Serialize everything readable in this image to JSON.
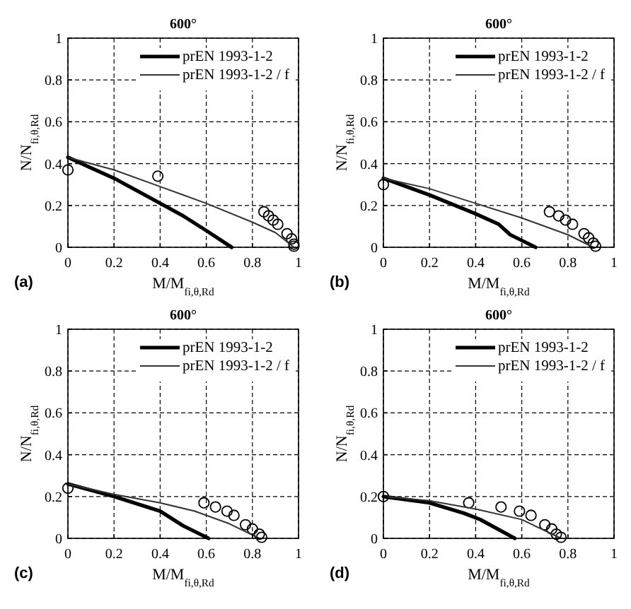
{
  "chart_data": [
    {
      "type": "scatter",
      "title": "600°",
      "xlabel": "M/M$_{fi,θ,Rd}$",
      "ylabel": "N/N$_{fi,θ,Rd}$",
      "annotations": [
        "(a)"
      ],
      "xlim": [
        0,
        1
      ],
      "ylim": [
        0,
        1
      ],
      "xticks": [
        0,
        0.2,
        0.4,
        0.6,
        0.8,
        1
      ],
      "yticks": [
        0,
        0.2,
        0.4,
        0.6,
        0.8,
        1
      ],
      "grid": true,
      "legend": "top right",
      "series": [
        {
          "marker": "circle",
          "color": "#000000",
          "x": [
            0,
            0.39,
            0.85,
            0.87,
            0.89,
            0.91,
            0.95,
            0.97,
            0.98,
            0.98
          ],
          "values": [
            0.37,
            0.34,
            0.17,
            0.15,
            0.13,
            0.11,
            0.065,
            0.04,
            0.015,
            0.005
          ]
        },
        {
          "type": "line",
          "name": "prEN 1993-1-2",
          "color": "#000000",
          "line_style": "solid",
          "x": [
            0,
            0.1,
            0.2,
            0.3,
            0.4,
            0.5,
            0.6,
            0.71
          ],
          "values": [
            0.43,
            0.38,
            0.33,
            0.27,
            0.21,
            0.15,
            0.08,
            0
          ]
        },
        {
          "type": "line",
          "name": "prEN 1993-1-2 / f",
          "color": "#333333",
          "line_style": "solid",
          "x": [
            0,
            0.2,
            0.4,
            0.6,
            0.8,
            0.9,
            0.98
          ],
          "values": [
            0.43,
            0.37,
            0.29,
            0.21,
            0.12,
            0.07,
            0
          ]
        }
      ]
    },
    {
      "type": "scatter",
      "title": "600°",
      "xlabel": "M/M$_{fi,θ,Rd}$",
      "ylabel": "N/N$_{fi,θ,Rd}$",
      "annotations": [
        "(b)"
      ],
      "xlim": [
        0,
        1
      ],
      "ylim": [
        0,
        1
      ],
      "xticks": [
        0,
        0.2,
        0.4,
        0.6,
        0.8,
        1
      ],
      "yticks": [
        0,
        0.2,
        0.4,
        0.6,
        0.8,
        1
      ],
      "grid": true,
      "legend": "top right",
      "series": [
        {
          "marker": "circle",
          "color": "#000000",
          "x": [
            0,
            0.72,
            0.76,
            0.79,
            0.82,
            0.87,
            0.89,
            0.91,
            0.92
          ],
          "values": [
            0.3,
            0.17,
            0.15,
            0.13,
            0.11,
            0.065,
            0.045,
            0.02,
            0.005
          ]
        },
        {
          "type": "line",
          "name": "prEN 1993-1-2",
          "color": "#000000",
          "line_style": "solid",
          "x": [
            0,
            0.2,
            0.4,
            0.5,
            0.55,
            0.66
          ],
          "values": [
            0.33,
            0.25,
            0.16,
            0.11,
            0.06,
            0
          ]
        },
        {
          "type": "line",
          "name": "prEN 1993-1-2 / f",
          "color": "#333333",
          "line_style": "solid",
          "x": [
            0,
            0.2,
            0.4,
            0.6,
            0.8,
            0.91
          ],
          "values": [
            0.33,
            0.28,
            0.21,
            0.14,
            0.06,
            0
          ]
        }
      ]
    },
    {
      "type": "scatter",
      "title": "600°",
      "xlabel": "M/M$_{fi,θ,Rd}$",
      "ylabel": "N/N$_{fi,θ,Rd}$",
      "annotations": [
        "(c)"
      ],
      "xlim": [
        0,
        1
      ],
      "ylim": [
        0,
        1
      ],
      "xticks": [
        0,
        0.2,
        0.4,
        0.6,
        0.8,
        1
      ],
      "yticks": [
        0,
        0.2,
        0.4,
        0.6,
        0.8,
        1
      ],
      "grid": true,
      "legend": "top right",
      "series": [
        {
          "marker": "circle",
          "color": "#000000",
          "x": [
            0,
            0.59,
            0.64,
            0.69,
            0.72,
            0.77,
            0.8,
            0.83,
            0.84
          ],
          "values": [
            0.24,
            0.17,
            0.15,
            0.13,
            0.11,
            0.065,
            0.045,
            0.02,
            0.005
          ]
        },
        {
          "type": "line",
          "name": "prEN 1993-1-2",
          "color": "#000000",
          "line_style": "solid",
          "x": [
            0,
            0.2,
            0.4,
            0.5,
            0.61
          ],
          "values": [
            0.26,
            0.2,
            0.13,
            0.06,
            0
          ]
        },
        {
          "type": "line",
          "name": "prEN 1993-1-2 / f",
          "color": "#333333",
          "line_style": "solid",
          "x": [
            0,
            0.2,
            0.4,
            0.55,
            0.7,
            0.83
          ],
          "values": [
            0.26,
            0.21,
            0.17,
            0.13,
            0.07,
            0
          ]
        }
      ]
    },
    {
      "type": "scatter",
      "title": "600°",
      "xlabel": "M/M$_{fi,θ,Rd}$",
      "ylabel": "N/N$_{fi,θ,Rd}$",
      "annotations": [
        "(d)"
      ],
      "xlim": [
        0,
        1
      ],
      "ylim": [
        0,
        1
      ],
      "xticks": [
        0,
        0.2,
        0.4,
        0.6,
        0.8,
        1
      ],
      "yticks": [
        0,
        0.2,
        0.4,
        0.6,
        0.8,
        1
      ],
      "grid": true,
      "legend": "top right",
      "series": [
        {
          "marker": "circle",
          "color": "#000000",
          "x": [
            0,
            0.37,
            0.51,
            0.59,
            0.64,
            0.7,
            0.73,
            0.75,
            0.77
          ],
          "values": [
            0.2,
            0.17,
            0.15,
            0.13,
            0.11,
            0.065,
            0.045,
            0.02,
            0.005
          ]
        },
        {
          "type": "line",
          "name": "prEN 1993-1-2",
          "color": "#000000",
          "line_style": "solid",
          "x": [
            0,
            0.2,
            0.35,
            0.42,
            0.57
          ],
          "values": [
            0.2,
            0.17,
            0.12,
            0.09,
            0
          ]
        },
        {
          "type": "line",
          "name": "prEN 1993-1-2 / f",
          "color": "#333333",
          "line_style": "solid",
          "x": [
            0,
            0.2,
            0.4,
            0.6,
            0.77
          ],
          "values": [
            0.2,
            0.18,
            0.14,
            0.09,
            0
          ]
        }
      ]
    }
  ]
}
